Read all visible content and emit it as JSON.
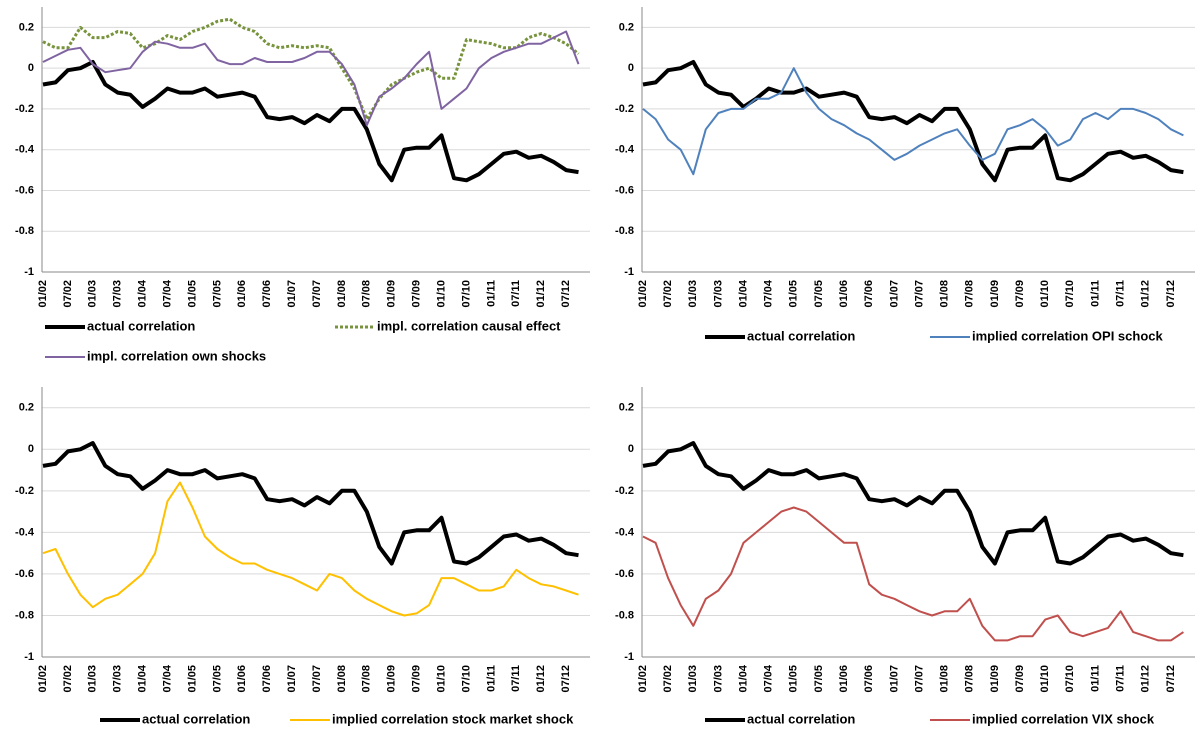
{
  "chart_data": [
    {
      "type": "line",
      "categories": [
        "01/02",
        null,
        "07/02",
        null,
        "01/03",
        null,
        "07/03",
        null,
        "01/04",
        null,
        "07/04",
        null,
        "01/05",
        null,
        "07/05",
        null,
        "01/06",
        null,
        "07/06",
        null,
        "01/07",
        null,
        "07/07",
        null,
        "01/08",
        null,
        "07/08",
        null,
        "01/09",
        null,
        "07/09",
        null,
        "01/10",
        null,
        "07/10",
        null,
        "01/11",
        null,
        "07/11",
        null,
        "01/12",
        null,
        "07/12",
        null
      ],
      "series": [
        {
          "name": "actual correlation",
          "color": "#000000",
          "values": [
            -0.08,
            -0.07,
            -0.01,
            0.0,
            0.03,
            -0.08,
            -0.12,
            -0.13,
            -0.19,
            -0.15,
            -0.1,
            -0.12,
            -0.12,
            -0.1,
            -0.14,
            -0.13,
            -0.12,
            -0.14,
            -0.24,
            -0.25,
            -0.24,
            -0.27,
            -0.23,
            -0.26,
            -0.2,
            -0.2,
            -0.3,
            -0.47,
            -0.55,
            -0.4,
            -0.39,
            -0.39,
            -0.33,
            -0.54,
            -0.55,
            -0.52,
            -0.47,
            -0.42,
            -0.41,
            -0.44,
            -0.43,
            -0.46,
            -0.5,
            -0.51
          ]
        },
        {
          "name": "impl. correlation causal effect",
          "color": "#77933c",
          "style": "dotted",
          "values": [
            0.13,
            0.1,
            0.1,
            0.2,
            0.15,
            0.15,
            0.18,
            0.17,
            0.1,
            0.12,
            0.16,
            0.14,
            0.18,
            0.2,
            0.23,
            0.24,
            0.2,
            0.18,
            0.12,
            0.1,
            0.11,
            0.1,
            0.11,
            0.1,
            0.0,
            -0.1,
            -0.25,
            -0.15,
            -0.08,
            -0.05,
            -0.02,
            0.0,
            -0.05,
            -0.05,
            0.14,
            0.13,
            0.12,
            0.1,
            0.1,
            0.15,
            0.17,
            0.15,
            0.12,
            0.07
          ]
        },
        {
          "name": "impl. correlation own shocks",
          "color": "#8064a2",
          "values": [
            0.03,
            0.06,
            0.09,
            0.1,
            0.02,
            -0.02,
            -0.01,
            0.0,
            0.08,
            0.13,
            0.12,
            0.1,
            0.1,
            0.12,
            0.04,
            0.02,
            0.02,
            0.05,
            0.03,
            0.03,
            0.03,
            0.05,
            0.08,
            0.08,
            0.02,
            -0.08,
            -0.28,
            -0.14,
            -0.1,
            -0.05,
            0.02,
            0.08,
            -0.2,
            -0.15,
            -0.1,
            0.0,
            0.05,
            0.08,
            0.1,
            0.12,
            0.12,
            0.15,
            0.18,
            0.02
          ]
        }
      ],
      "ylim": [
        -1,
        0.3
      ],
      "yticks": [
        -1,
        -0.8,
        -0.6,
        -0.4,
        -0.2,
        0,
        0.2
      ],
      "grid": true
    },
    {
      "type": "line",
      "categories": [
        "01/02",
        null,
        "07/02",
        null,
        "01/03",
        null,
        "07/03",
        null,
        "01/04",
        null,
        "07/04",
        null,
        "01/05",
        null,
        "07/05",
        null,
        "01/06",
        null,
        "07/06",
        null,
        "01/07",
        null,
        "07/07",
        null,
        "01/08",
        null,
        "07/08",
        null,
        "01/09",
        null,
        "07/09",
        null,
        "01/10",
        null,
        "07/10",
        null,
        "01/11",
        null,
        "07/11",
        null,
        "01/12",
        null,
        "07/12",
        null
      ],
      "series": [
        {
          "name": "actual correlation",
          "color": "#000000",
          "values": [
            -0.08,
            -0.07,
            -0.01,
            0.0,
            0.03,
            -0.08,
            -0.12,
            -0.13,
            -0.19,
            -0.15,
            -0.1,
            -0.12,
            -0.12,
            -0.1,
            -0.14,
            -0.13,
            -0.12,
            -0.14,
            -0.24,
            -0.25,
            -0.24,
            -0.27,
            -0.23,
            -0.26,
            -0.2,
            -0.2,
            -0.3,
            -0.47,
            -0.55,
            -0.4,
            -0.39,
            -0.39,
            -0.33,
            -0.54,
            -0.55,
            -0.52,
            -0.47,
            -0.42,
            -0.41,
            -0.44,
            -0.43,
            -0.46,
            -0.5,
            -0.51
          ]
        },
        {
          "name": "implied correlation OPI schock",
          "color": "#4f81bd",
          "values": [
            -0.2,
            -0.25,
            -0.35,
            -0.4,
            -0.52,
            -0.3,
            -0.22,
            -0.2,
            -0.2,
            -0.15,
            -0.15,
            -0.12,
            0.0,
            -0.12,
            -0.2,
            -0.25,
            -0.28,
            -0.32,
            -0.35,
            -0.4,
            -0.45,
            -0.42,
            -0.38,
            -0.35,
            -0.32,
            -0.3,
            -0.38,
            -0.45,
            -0.42,
            -0.3,
            -0.28,
            -0.25,
            -0.3,
            -0.38,
            -0.35,
            -0.25,
            -0.22,
            -0.25,
            -0.2,
            -0.2,
            -0.22,
            -0.25,
            -0.3,
            -0.33
          ]
        }
      ],
      "ylim": [
        -1,
        0.3
      ],
      "yticks": [
        -1,
        -0.8,
        -0.6,
        -0.4,
        -0.2,
        0,
        0.2
      ],
      "grid": true
    },
    {
      "type": "line",
      "categories": [
        "01/02",
        null,
        "07/02",
        null,
        "01/03",
        null,
        "07/03",
        null,
        "01/04",
        null,
        "07/04",
        null,
        "01/05",
        null,
        "07/05",
        null,
        "01/06",
        null,
        "07/06",
        null,
        "01/07",
        null,
        "07/07",
        null,
        "01/08",
        null,
        "07/08",
        null,
        "01/09",
        null,
        "07/09",
        null,
        "01/10",
        null,
        "07/10",
        null,
        "01/11",
        null,
        "07/11",
        null,
        "01/12",
        null,
        "07/12",
        null
      ],
      "series": [
        {
          "name": "actual correlation",
          "color": "#000000",
          "values": [
            -0.08,
            -0.07,
            -0.01,
            0.0,
            0.03,
            -0.08,
            -0.12,
            -0.13,
            -0.19,
            -0.15,
            -0.1,
            -0.12,
            -0.12,
            -0.1,
            -0.14,
            -0.13,
            -0.12,
            -0.14,
            -0.24,
            -0.25,
            -0.24,
            -0.27,
            -0.23,
            -0.26,
            -0.2,
            -0.2,
            -0.3,
            -0.47,
            -0.55,
            -0.4,
            -0.39,
            -0.39,
            -0.33,
            -0.54,
            -0.55,
            -0.52,
            -0.47,
            -0.42,
            -0.41,
            -0.44,
            -0.43,
            -0.46,
            -0.5,
            -0.51
          ]
        },
        {
          "name": "implied correlation stock market shock",
          "color": "#ffc000",
          "values": [
            -0.5,
            -0.48,
            -0.6,
            -0.7,
            -0.76,
            -0.72,
            -0.7,
            -0.65,
            -0.6,
            -0.5,
            -0.25,
            -0.16,
            -0.28,
            -0.42,
            -0.48,
            -0.52,
            -0.55,
            -0.55,
            -0.58,
            -0.6,
            -0.62,
            -0.65,
            -0.68,
            -0.6,
            -0.62,
            -0.68,
            -0.72,
            -0.75,
            -0.78,
            -0.8,
            -0.79,
            -0.75,
            -0.62,
            -0.62,
            -0.65,
            -0.68,
            -0.68,
            -0.66,
            -0.58,
            -0.62,
            -0.65,
            -0.66,
            -0.68,
            -0.7
          ]
        }
      ],
      "ylim": [
        -1,
        0.3
      ],
      "yticks": [
        -1,
        -0.8,
        -0.6,
        -0.4,
        -0.2,
        0,
        0.2
      ],
      "grid": true
    },
    {
      "type": "line",
      "categories": [
        "01/02",
        null,
        "07/02",
        null,
        "01/03",
        null,
        "07/03",
        null,
        "01/04",
        null,
        "07/04",
        null,
        "01/05",
        null,
        "07/05",
        null,
        "01/06",
        null,
        "07/06",
        null,
        "01/07",
        null,
        "07/07",
        null,
        "01/08",
        null,
        "07/08",
        null,
        "01/09",
        null,
        "07/09",
        null,
        "01/10",
        null,
        "07/10",
        null,
        "01/11",
        null,
        "07/11",
        null,
        "01/12",
        null,
        "07/12",
        null
      ],
      "series": [
        {
          "name": "actual correlation",
          "color": "#000000",
          "values": [
            -0.08,
            -0.07,
            -0.01,
            0.0,
            0.03,
            -0.08,
            -0.12,
            -0.13,
            -0.19,
            -0.15,
            -0.1,
            -0.12,
            -0.12,
            -0.1,
            -0.14,
            -0.13,
            -0.12,
            -0.14,
            -0.24,
            -0.25,
            -0.24,
            -0.27,
            -0.23,
            -0.26,
            -0.2,
            -0.2,
            -0.3,
            -0.47,
            -0.55,
            -0.4,
            -0.39,
            -0.39,
            -0.33,
            -0.54,
            -0.55,
            -0.52,
            -0.47,
            -0.42,
            -0.41,
            -0.44,
            -0.43,
            -0.46,
            -0.5,
            -0.51
          ]
        },
        {
          "name": "implied correlation VIX shock",
          "color": "#c0504d",
          "values": [
            -0.42,
            -0.45,
            -0.62,
            -0.75,
            -0.85,
            -0.72,
            -0.68,
            -0.6,
            -0.45,
            -0.4,
            -0.35,
            -0.3,
            -0.28,
            -0.3,
            -0.35,
            -0.4,
            -0.45,
            -0.45,
            -0.65,
            -0.7,
            -0.72,
            -0.75,
            -0.78,
            -0.8,
            -0.78,
            -0.78,
            -0.72,
            -0.85,
            -0.92,
            -0.92,
            -0.9,
            -0.9,
            -0.82,
            -0.8,
            -0.88,
            -0.9,
            -0.88,
            -0.86,
            -0.78,
            -0.88,
            -0.9,
            -0.92,
            -0.92,
            -0.88
          ]
        }
      ],
      "ylim": [
        -1,
        0.3
      ],
      "yticks": [
        -1,
        -0.8,
        -0.6,
        -0.4,
        -0.2,
        0,
        0.2
      ],
      "grid": true
    }
  ]
}
